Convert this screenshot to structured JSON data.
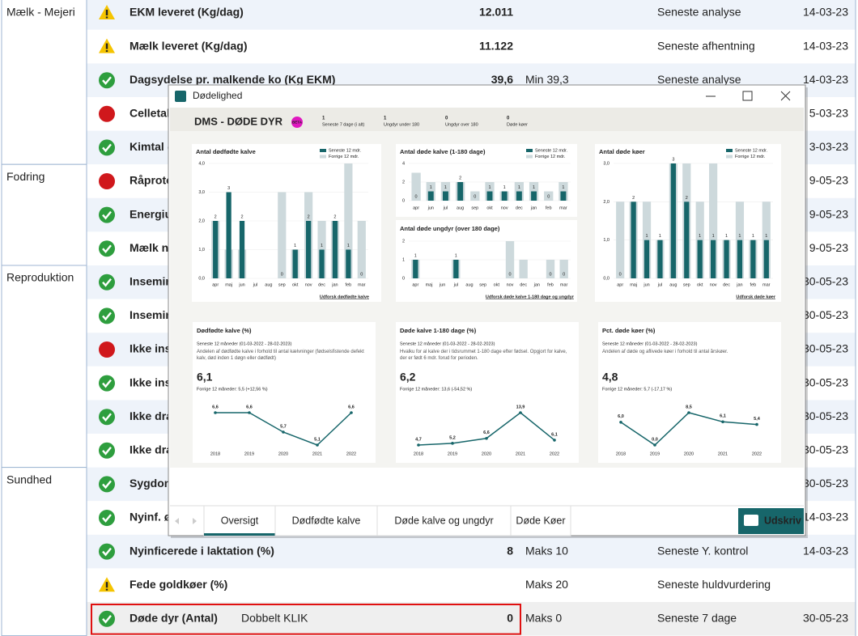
{
  "table": {
    "groups": [
      {
        "name": "Mælk - Mejeri",
        "rows": [
          {
            "status": "warn",
            "label": "EKM leveret (Kg/dag)",
            "value": "12.011",
            "source": "Seneste analyse",
            "date": "14-03-23"
          },
          {
            "status": "warn",
            "label": "Mælk leveret (Kg/dag)",
            "value": "11.122",
            "source": "Seneste afhentning",
            "date": "14-03-23"
          },
          {
            "status": "ok",
            "label": "Dagsydelse pr. malkende ko (Kg EKM)",
            "value": "39,6",
            "limit": "Min 39,3",
            "source": "Seneste analyse",
            "date": "14-03-23"
          },
          {
            "status": "bad",
            "label": "Celletal",
            "date": "5-03-23"
          },
          {
            "status": "ok",
            "label": "Kimtal (",
            "date": "3-03-23"
          }
        ]
      },
      {
        "name": "Fodring",
        "rows": [
          {
            "status": "bad",
            "label": "Råprote",
            "date": "9-05-23"
          },
          {
            "status": "ok",
            "label": "Energiu",
            "date": "9-05-23"
          },
          {
            "status": "ok",
            "label": "Mælk n",
            "date": "9-05-23"
          }
        ]
      },
      {
        "name": "Reproduktion",
        "rows": [
          {
            "status": "ok",
            "label": "Insemin",
            "date": "30-05-23"
          },
          {
            "status": "ok",
            "label": "Insemin",
            "date": "30-05-23"
          },
          {
            "status": "bad",
            "label": "Ikke ins",
            "date": "30-05-23"
          },
          {
            "status": "ok",
            "label": "Ikke ins",
            "date": "30-05-23"
          },
          {
            "status": "ok",
            "label": "Ikke dra",
            "date": "30-05-23"
          },
          {
            "status": "ok",
            "label": "Ikke dra",
            "date": "30-05-23"
          }
        ]
      },
      {
        "name": "Sundhed",
        "rows": [
          {
            "status": "ok",
            "label": "Sygdom",
            "date": "30-05-23"
          },
          {
            "status": "ok",
            "label": "Nyinf. ø",
            "date": "14-03-23"
          },
          {
            "status": "ok",
            "label": "Nyinficerede i laktation (%)",
            "value": "8",
            "limit": "Maks 10",
            "source": "Seneste Y. kontrol",
            "date": "14-03-23"
          },
          {
            "status": "warn",
            "label": "Fede goldkøer (%)",
            "limit": "Maks 20",
            "source": "Seneste huldvurdering"
          },
          {
            "status": "ok",
            "label": "Døde dyr (Antal)",
            "value": "0",
            "limit": "Maks 0",
            "source": "Seneste 7 dage",
            "date": "30-05-23"
          }
        ]
      }
    ]
  },
  "annotation": "Dobbelt KLIK",
  "dialog": {
    "title": "Dødelighed",
    "heading": "DMS - DØDE DYR",
    "badge": "BETA",
    "stats": [
      {
        "value": 1,
        "label": "Seneste 7 dage (i alt)"
      },
      {
        "value": 1,
        "label": "Ungdyr under 180"
      },
      {
        "value": 0,
        "label": "Ungdyr over 180"
      },
      {
        "value": 0,
        "label": "Døde køer"
      }
    ],
    "tabs": [
      "Oversigt",
      "Dødfødte kalve",
      "Døde kalve og ungdyr",
      "Døde Køer"
    ],
    "print": "Udskriv"
  },
  "chart_data": [
    {
      "type": "bar",
      "title": "Antal dødfødte kalve",
      "categories": [
        "apr",
        "maj",
        "jun",
        "jul",
        "aug",
        "sep",
        "okt",
        "nov",
        "dec",
        "jan",
        "feb",
        "mar"
      ],
      "series": [
        {
          "name": "Seneste 12 mdr.",
          "color": "#17666a",
          "values": [
            2,
            3,
            2,
            null,
            null,
            0,
            1,
            2,
            1,
            2,
            1,
            0
          ]
        },
        {
          "name": "Forrige 12 mdr.",
          "color": "#cdd9dc",
          "values": [
            2,
            1,
            1,
            null,
            null,
            3,
            1,
            3,
            2,
            2,
            4,
            2
          ]
        }
      ],
      "ylim": [
        0,
        4
      ],
      "yticks": [
        {
          "value": 0,
          "label": "0,0"
        },
        {
          "value": 1,
          "label": "1,0"
        },
        {
          "value": 2,
          "label": "2,0"
        },
        {
          "value": 3,
          "label": "3,0"
        },
        {
          "value": 4,
          "label": "4,0"
        }
      ],
      "link": "Udforsk dødfødte kalve"
    },
    {
      "type": "bar",
      "title": "Antal døde kalve (1-180 dage)",
      "categories": [
        "apr",
        "jun",
        "jul",
        "aug",
        "sep",
        "okt",
        "nov",
        "dec",
        "jan",
        "feb",
        "mar"
      ],
      "series": [
        {
          "name": "Seneste 12 mdr.",
          "color": "#17666a",
          "values": [
            0,
            1,
            1,
            2,
            0,
            1,
            1,
            1,
            1,
            0,
            1
          ]
        },
        {
          "name": "Forrige 12 mdr.",
          "color": "#cdd9dc",
          "values": [
            3,
            2,
            2,
            2,
            1,
            2,
            1,
            2,
            2,
            1,
            2
          ]
        }
      ],
      "ylim": [
        0,
        4
      ],
      "yticks": [
        0,
        2,
        4
      ]
    },
    {
      "type": "bar",
      "title": "Antal døde ungdyr (over 180 dage)",
      "categories": [
        "apr",
        "maj",
        "jun",
        "jul",
        "aug",
        "sep",
        "okt",
        "nov",
        "dec",
        "jan",
        "feb",
        "mar"
      ],
      "series": [
        {
          "color": "#17666a",
          "values": [
            1,
            null,
            null,
            1,
            null,
            null,
            null,
            0,
            null,
            null,
            0,
            0
          ]
        },
        {
          "color": "#cdd9dc",
          "values": [
            1,
            null,
            null,
            1,
            null,
            null,
            null,
            2,
            1,
            null,
            1,
            1
          ]
        }
      ],
      "ylim": [
        0,
        2
      ],
      "yticks": [
        0,
        1,
        2
      ],
      "link": "Udforsk døde kalve 1-180 dage og ungdyr"
    },
    {
      "type": "bar",
      "title": "Antal døde køer",
      "categories": [
        "apr",
        "maj",
        "jun",
        "jul",
        "aug",
        "sep",
        "okt",
        "nov",
        "dec",
        "jan",
        "feb",
        "mar"
      ],
      "series": [
        {
          "name": "Seneste 12 mdr.",
          "color": "#17666a",
          "values": [
            0,
            2,
            1,
            1,
            3,
            2,
            1,
            1,
            1,
            1,
            1,
            1
          ]
        },
        {
          "name": "Forrige 12 mdr.",
          "color": "#cdd9dc",
          "values": [
            2,
            2,
            2,
            1,
            3,
            3,
            2,
            3,
            1,
            2,
            1,
            2
          ]
        }
      ],
      "ylim": [
        0,
        3
      ],
      "yticks": [
        {
          "value": 0,
          "label": "0,0"
        },
        {
          "value": 1,
          "label": "1,0"
        },
        {
          "value": 2,
          "label": "2,0"
        },
        {
          "value": 3,
          "label": "3,0"
        }
      ],
      "link": "Udforsk døde køer"
    },
    {
      "type": "line",
      "title": "Dødfødte kalve (%)",
      "subtitle": "Seneste 12 måneder (01-03-2022 - 28-02-2023)",
      "note": "Andelen af dødfødte kalve i forhold til antal kælvninger (fødselsfistende defekt kalv, død inden 1 døgn eller dødfødt)",
      "kpi": "6,1",
      "kpi_color": "#b8321f",
      "previous": "Forrige 12 måneder: 5,5 (+12,56 %)",
      "categories": [
        "2018",
        "2019",
        "2020",
        "2021",
        "2022"
      ],
      "values": [
        6.6,
        6.6,
        5.7,
        5.1,
        6.6
      ],
      "value_labels": [
        "6,6",
        "6,6",
        "5,7",
        "5,1",
        "6,6"
      ],
      "color": "#17666a"
    },
    {
      "type": "line",
      "title": "Døde kalve 1-180 dage (%)",
      "subtitle": "Seneste 12 måneder (01-03-2022 - 28-02-2023)",
      "note": "Hvalku for al kalve der i tidsrummet 1-180 dage efter fødsel. Opgjort for kalve, der er født 6 mdr. forud for perioden.",
      "kpi": "6,2",
      "kpi_color": "#4d6b3c",
      "previous": "Forrige 12 måneder: 13,6 (-54,52 %)",
      "categories": [
        "2018",
        "2019",
        "2020",
        "2021",
        "2022"
      ],
      "values": [
        4.7,
        5.2,
        6.6,
        13.9,
        6.1
      ],
      "value_labels": [
        "4,7",
        "5,2",
        "6,6",
        "13,9",
        "6,1"
      ],
      "color": "#17666a"
    },
    {
      "type": "line",
      "title": "Pct. døde køer (%)",
      "subtitle": "Seneste 12 måneder (01-03-2022 - 28-02-2023)",
      "note": "Andelen af døde og aflivede køer i forhold til antal årskøer.",
      "kpi": "4,8",
      "kpi_color": "#5a6b3c",
      "previous": "Forrige 12 måneder: 5,7 (-17,17 %)",
      "categories": [
        "2018",
        "2019",
        "2020",
        "2021",
        "2022"
      ],
      "values": [
        6.0,
        0.0,
        8.5,
        6.1,
        5.4
      ],
      "value_labels": [
        "6,0",
        "0,0",
        "8,5",
        "6,1",
        "5,4"
      ],
      "color": "#17666a"
    }
  ]
}
